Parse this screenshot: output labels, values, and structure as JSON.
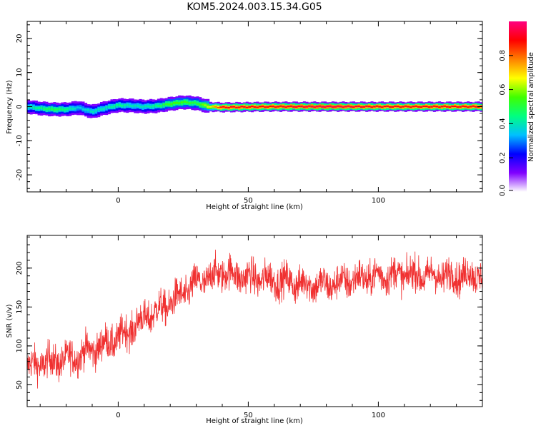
{
  "title": "KOM5.2024.003.15.34.G05",
  "chart_data": [
    {
      "type": "heatmap",
      "xlabel": "Height of straight line (km)",
      "ylabel": "Frequency (Hz)",
      "xlim": [
        -35,
        140
      ],
      "ylim": [
        -25,
        25
      ],
      "xticks": [
        0,
        50,
        100
      ],
      "yticks": [
        -20,
        -10,
        0,
        10,
        20
      ],
      "colorbar": {
        "label": "Normalized spectral amplitude",
        "range": [
          0,
          1
        ],
        "ticks": [
          0.0,
          0.2,
          0.4,
          0.6,
          0.8
        ],
        "colors": [
          "#ffffff",
          "#8000ff",
          "#0000ff",
          "#00c0ff",
          "#00ff80",
          "#40ff00",
          "#ffff00",
          "#ff8000",
          "#ff0000",
          "#ff0080"
        ]
      },
      "ridge": {
        "x": [
          -35,
          -30,
          -25,
          -20,
          -15,
          -10,
          -5,
          0,
          5,
          10,
          15,
          20,
          25,
          30,
          35,
          40,
          60,
          80,
          100,
          120,
          140
        ],
        "freq": [
          0.0,
          -0.5,
          -0.8,
          -0.8,
          -0.3,
          -1.5,
          -0.4,
          0.4,
          0.3,
          0.0,
          0.2,
          0.8,
          1.3,
          1.0,
          0.0,
          -0.2,
          0.0,
          0.0,
          0.0,
          0.0,
          0.0
        ],
        "amplitude": [
          0.35,
          0.4,
          0.45,
          0.4,
          0.3,
          0.35,
          0.35,
          0.4,
          0.35,
          0.35,
          0.4,
          0.5,
          0.5,
          0.45,
          0.6,
          0.85,
          0.85,
          0.9,
          0.85,
          0.85,
          0.85
        ]
      }
    },
    {
      "type": "line",
      "xlabel": "Height of straight line (km)",
      "ylabel": "SNR (v/v)",
      "xlim": [
        -35,
        140
      ],
      "ylim": [
        22,
        242
      ],
      "xticks": [
        0,
        50,
        100
      ],
      "yticks": [
        50,
        100,
        150,
        200
      ],
      "color": "#f03030",
      "trend": {
        "x": [
          -35,
          -30,
          -20,
          -10,
          0,
          10,
          20,
          30,
          40,
          50,
          60,
          70,
          80,
          90,
          100,
          110,
          120,
          130,
          140
        ],
        "y": [
          72,
          78,
          82,
          95,
          110,
          135,
          155,
          180,
          195,
          188,
          185,
          180,
          178,
          185,
          190,
          192,
          190,
          190,
          192
        ],
        "noise_amplitude": 16,
        "samples_per_km": 10
      }
    }
  ]
}
